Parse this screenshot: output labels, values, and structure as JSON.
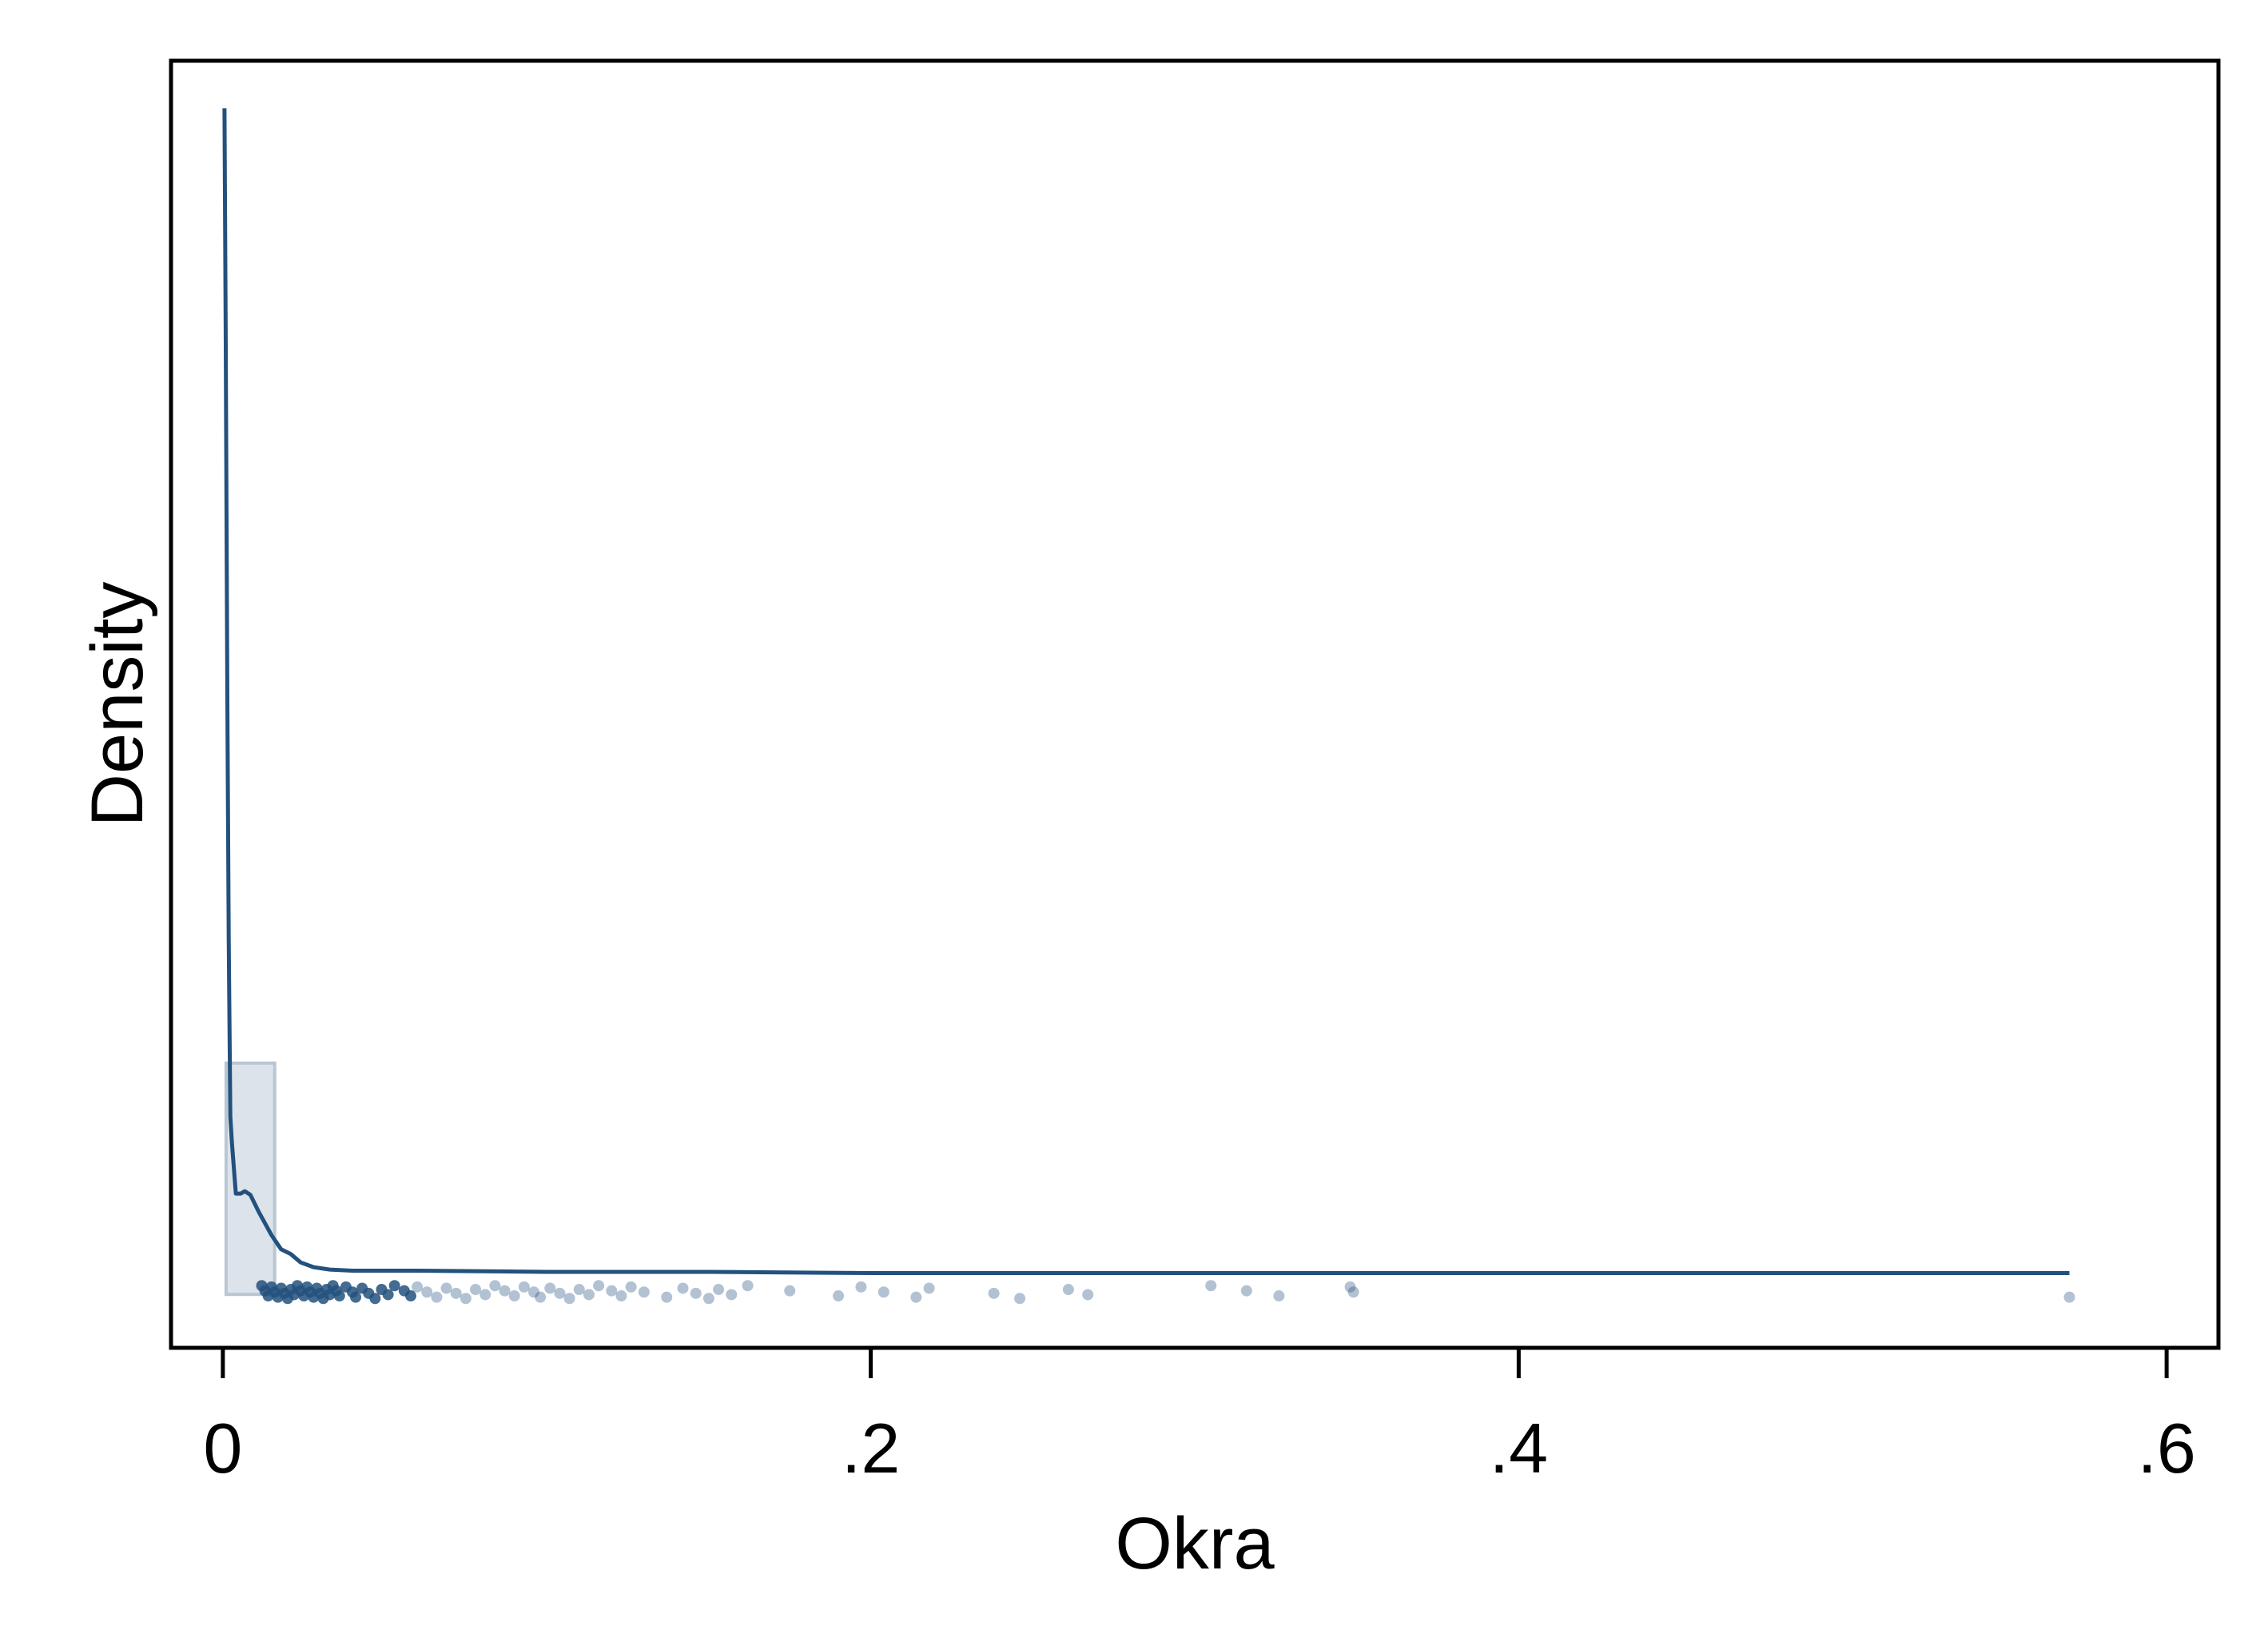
{
  "colors": {
    "background": "#ffffff",
    "frame": "#000000",
    "line": "#23517d",
    "histogram_fill": "#dde3ea",
    "histogram_edge": "#b9c6d4",
    "points": "#23517d"
  },
  "chart_data": {
    "type": "area",
    "title": "",
    "xlabel": "Okra",
    "ylabel": "Density",
    "xlim": [
      -0.016,
      0.616
    ],
    "ylim": [
      -0.045,
      1.04
    ],
    "x_ticks": [
      {
        "value": 0,
        "label": "0"
      },
      {
        "value": 0.2,
        "label": ".2"
      },
      {
        "value": 0.4,
        "label": ".4"
      },
      {
        "value": 0.6,
        "label": ".6"
      }
    ],
    "y_ticks_labeled": false,
    "grid": false,
    "legend": "none",
    "histogram": {
      "bins": [
        {
          "x0": 0.001,
          "x1": 0.016,
          "density": 0.195
        }
      ]
    },
    "density_line": {
      "x": [
        0.0005,
        0.0009,
        0.0014,
        0.0018,
        0.0023,
        0.0028,
        0.004,
        0.0055,
        0.0068,
        0.0085,
        0.011,
        0.015,
        0.018,
        0.021,
        0.024,
        0.028,
        0.033,
        0.04,
        0.06,
        0.1,
        0.15,
        0.2,
        0.3,
        0.4,
        0.5,
        0.57
      ],
      "y": [
        1.0,
        0.8,
        0.5,
        0.3,
        0.15,
        0.128,
        0.085,
        0.085,
        0.087,
        0.084,
        0.07,
        0.05,
        0.038,
        0.034,
        0.027,
        0.023,
        0.021,
        0.02,
        0.02,
        0.019,
        0.019,
        0.018,
        0.018,
        0.018,
        0.018,
        0.018
      ]
    },
    "rug_points": [
      0.012,
      0.013,
      0.014,
      0.015,
      0.016,
      0.017,
      0.018,
      0.019,
      0.02,
      0.021,
      0.022,
      0.023,
      0.024,
      0.025,
      0.026,
      0.027,
      0.028,
      0.029,
      0.03,
      0.031,
      0.032,
      0.033,
      0.034,
      0.035,
      0.036,
      0.038,
      0.04,
      0.041,
      0.043,
      0.045,
      0.047,
      0.049,
      0.051,
      0.053,
      0.056,
      0.058,
      0.06,
      0.063,
      0.066,
      0.069,
      0.072,
      0.075,
      0.078,
      0.081,
      0.084,
      0.087,
      0.09,
      0.093,
      0.096,
      0.098,
      0.101,
      0.104,
      0.107,
      0.11,
      0.113,
      0.116,
      0.12,
      0.123,
      0.126,
      0.13,
      0.137,
      0.142,
      0.146,
      0.15,
      0.153,
      0.157,
      0.162,
      0.175,
      0.19,
      0.197,
      0.204,
      0.214,
      0.218,
      0.238,
      0.246,
      0.261,
      0.267,
      0.305,
      0.316,
      0.326,
      0.348,
      0.349,
      0.57
    ]
  }
}
